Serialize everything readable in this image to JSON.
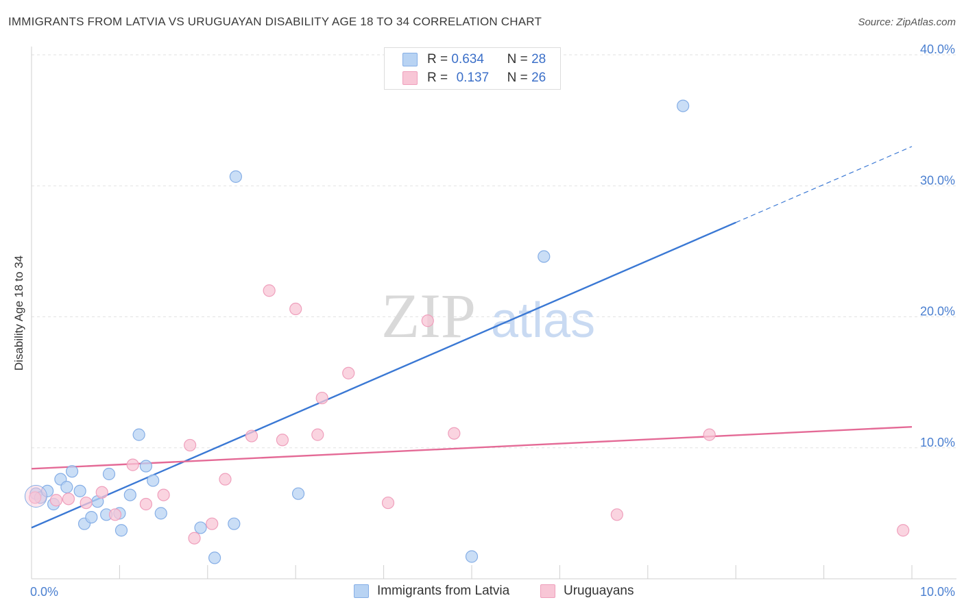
{
  "title": "IMMIGRANTS FROM LATVIA VS URUGUAYAN DISABILITY AGE 18 TO 34 CORRELATION CHART",
  "source": "Source: ZipAtlas.com",
  "legend": {
    "row1": {
      "r_label": "R =",
      "r_value": "0.634",
      "n_label": "N =",
      "n_value": "28"
    },
    "row2": {
      "r_label": "R =",
      "r_value": "0.137",
      "n_label": "N =",
      "n_value": "26"
    }
  },
  "watermark": {
    "zip": "ZIP",
    "atlas": "atlas"
  },
  "colors": {
    "blue": "#3a78d4",
    "blue_fill": "#b8d3f3",
    "blue_stroke": "#85aee6",
    "pink": "#e46a96",
    "pink_fill": "#f8c6d6",
    "pink_stroke": "#ef9fbc"
  },
  "chart_data": {
    "type": "scatter",
    "title": "IMMIGRANTS FROM LATVIA VS URUGUAYAN DISABILITY AGE 18 TO 34 CORRELATION CHART",
    "xlabel": "",
    "ylabel": "Disability Age 18 to 34",
    "xlim": [
      0,
      10
    ],
    "ylim": [
      0,
      40
    ],
    "x_tick_labels": [
      "0.0%",
      "10.0%"
    ],
    "y_ticks": [
      10,
      20,
      30,
      40
    ],
    "y_tick_labels": [
      "10.0%",
      "20.0%",
      "30.0%",
      "40.0%"
    ],
    "series": [
      {
        "name": "Immigrants from Latvia",
        "color": "blue",
        "points": [
          [
            0.05,
            6.5
          ],
          [
            0.1,
            6.2
          ],
          [
            0.18,
            6.7
          ],
          [
            0.25,
            5.7
          ],
          [
            0.33,
            7.6
          ],
          [
            0.4,
            7.0
          ],
          [
            0.46,
            8.2
          ],
          [
            0.55,
            6.7
          ],
          [
            0.6,
            4.2
          ],
          [
            0.68,
            4.7
          ],
          [
            0.75,
            5.9
          ],
          [
            0.85,
            4.9
          ],
          [
            0.88,
            8.0
          ],
          [
            1.0,
            5.0
          ],
          [
            1.02,
            3.7
          ],
          [
            1.12,
            6.4
          ],
          [
            1.22,
            11.0
          ],
          [
            1.3,
            8.6
          ],
          [
            1.38,
            7.5
          ],
          [
            1.47,
            5.0
          ],
          [
            1.92,
            3.9
          ],
          [
            2.08,
            1.6
          ],
          [
            2.3,
            4.2
          ],
          [
            2.32,
            30.7
          ],
          [
            3.03,
            6.5
          ],
          [
            5.0,
            1.7
          ],
          [
            5.82,
            24.6
          ],
          [
            7.4,
            36.1
          ]
        ],
        "trend": {
          "x": [
            0,
            8.0
          ],
          "y": [
            3.9,
            27.2
          ],
          "dashed_x": [
            8.0,
            10.0
          ],
          "dashed_y": [
            27.2,
            33.0
          ]
        }
      },
      {
        "name": "Uruguayans",
        "color": "pink",
        "points": [
          [
            0.04,
            6.2
          ],
          [
            0.28,
            6.0
          ],
          [
            0.42,
            6.1
          ],
          [
            0.62,
            5.8
          ],
          [
            0.8,
            6.6
          ],
          [
            0.95,
            4.9
          ],
          [
            1.15,
            8.7
          ],
          [
            1.3,
            5.7
          ],
          [
            1.5,
            6.4
          ],
          [
            1.8,
            10.2
          ],
          [
            1.85,
            3.1
          ],
          [
            2.05,
            4.2
          ],
          [
            2.2,
            7.6
          ],
          [
            2.5,
            10.9
          ],
          [
            2.7,
            22.0
          ],
          [
            2.85,
            10.6
          ],
          [
            3.0,
            20.6
          ],
          [
            3.25,
            11.0
          ],
          [
            3.3,
            13.8
          ],
          [
            3.6,
            15.7
          ],
          [
            4.05,
            5.8
          ],
          [
            4.5,
            19.7
          ],
          [
            4.8,
            11.1
          ],
          [
            6.65,
            4.9
          ],
          [
            7.7,
            11.0
          ],
          [
            9.9,
            3.7
          ]
        ],
        "trend": {
          "x": [
            0,
            10.0
          ],
          "y": [
            8.4,
            11.6
          ]
        }
      }
    ]
  },
  "bottom_legend": {
    "item1": "Immigrants from Latvia",
    "item2": "Uruguayans"
  }
}
